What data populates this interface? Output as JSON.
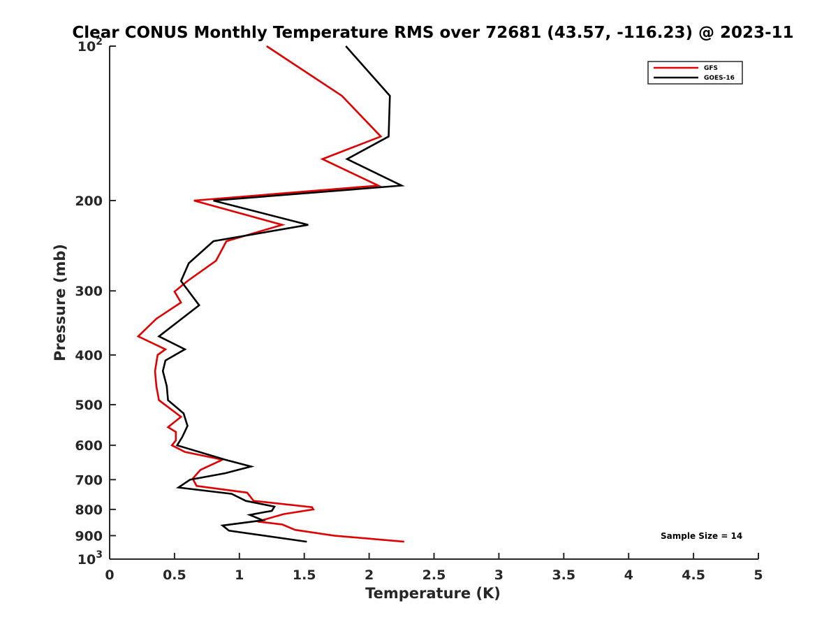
{
  "chart_data": {
    "type": "line",
    "title": "Clear CONUS Monthly Temperature RMS over 72681 (43.57, -116.23) @ 2023-11",
    "xlabel": "Temperature (K)",
    "ylabel": "Pressure (mb)",
    "xlim": [
      0,
      5
    ],
    "ylim": [
      100,
      1000
    ],
    "y_scale": "log",
    "y_reversed": true,
    "grid": false,
    "legend_position": "top-right",
    "x_ticks": [
      "0",
      "0.5",
      "1",
      "1.5",
      "2",
      "2.5",
      "3",
      "3.5",
      "4",
      "4.5",
      "5"
    ],
    "x_tick_values": [
      0,
      0.5,
      1,
      1.5,
      2,
      2.5,
      3,
      3.5,
      4,
      4.5,
      5
    ],
    "y_ticks": [
      {
        "value": 100,
        "base": "10",
        "exp": "2"
      },
      {
        "value": 200,
        "label": "200"
      },
      {
        "value": 300,
        "label": "300"
      },
      {
        "value": 400,
        "label": "400"
      },
      {
        "value": 500,
        "label": "500"
      },
      {
        "value": 600,
        "label": "600"
      },
      {
        "value": 700,
        "label": "700"
      },
      {
        "value": 800,
        "label": "800"
      },
      {
        "value": 900,
        "label": "900"
      },
      {
        "value": 1000,
        "base": "10",
        "exp": "3"
      }
    ],
    "annotation": "Sample Size = 14",
    "series": [
      {
        "name": "GFS",
        "color": "#e00000",
        "points": [
          [
            1.21,
            100
          ],
          [
            1.79,
            125
          ],
          [
            2.09,
            150
          ],
          [
            1.64,
            166
          ],
          [
            2.07,
            187
          ],
          [
            0.65,
            200
          ],
          [
            1.33,
            223
          ],
          [
            0.9,
            240
          ],
          [
            0.82,
            262
          ],
          [
            0.6,
            287
          ],
          [
            0.5,
            301
          ],
          [
            0.55,
            316
          ],
          [
            0.36,
            340
          ],
          [
            0.22,
            368
          ],
          [
            0.43,
            390
          ],
          [
            0.37,
            400
          ],
          [
            0.35,
            430
          ],
          [
            0.36,
            460
          ],
          [
            0.38,
            490
          ],
          [
            0.55,
            528
          ],
          [
            0.45,
            553
          ],
          [
            0.51,
            565
          ],
          [
            0.51,
            587
          ],
          [
            0.48,
            600
          ],
          [
            0.58,
            618
          ],
          [
            0.87,
            640
          ],
          [
            0.7,
            670
          ],
          [
            0.64,
            697
          ],
          [
            0.67,
            720
          ],
          [
            1.06,
            742
          ],
          [
            1.11,
            770
          ],
          [
            1.56,
            792
          ],
          [
            1.57,
            800
          ],
          [
            1.34,
            817
          ],
          [
            1.14,
            845
          ],
          [
            1.33,
            856
          ],
          [
            1.43,
            877
          ],
          [
            1.73,
            900
          ],
          [
            2.27,
            925
          ]
        ]
      },
      {
        "name": "GOES-16",
        "color": "#000000",
        "points": [
          [
            1.82,
            100
          ],
          [
            2.16,
            125
          ],
          [
            2.15,
            150
          ],
          [
            1.83,
            166
          ],
          [
            2.25,
            187
          ],
          [
            0.8,
            200
          ],
          [
            1.53,
            223
          ],
          [
            0.8,
            240
          ],
          [
            0.61,
            265
          ],
          [
            0.55,
            287
          ],
          [
            0.69,
            320
          ],
          [
            0.38,
            368
          ],
          [
            0.58,
            390
          ],
          [
            0.43,
            410
          ],
          [
            0.41,
            430
          ],
          [
            0.44,
            460
          ],
          [
            0.45,
            490
          ],
          [
            0.57,
            520
          ],
          [
            0.6,
            550
          ],
          [
            0.56,
            578
          ],
          [
            0.52,
            600
          ],
          [
            0.89,
            640
          ],
          [
            1.09,
            660
          ],
          [
            0.89,
            680
          ],
          [
            0.62,
            700
          ],
          [
            0.53,
            725
          ],
          [
            0.94,
            746
          ],
          [
            1.05,
            770
          ],
          [
            1.27,
            790
          ],
          [
            1.25,
            805
          ],
          [
            1.08,
            820
          ],
          [
            1.18,
            840
          ],
          [
            0.87,
            860
          ],
          [
            0.92,
            880
          ],
          [
            1.52,
            925
          ]
        ]
      }
    ]
  }
}
